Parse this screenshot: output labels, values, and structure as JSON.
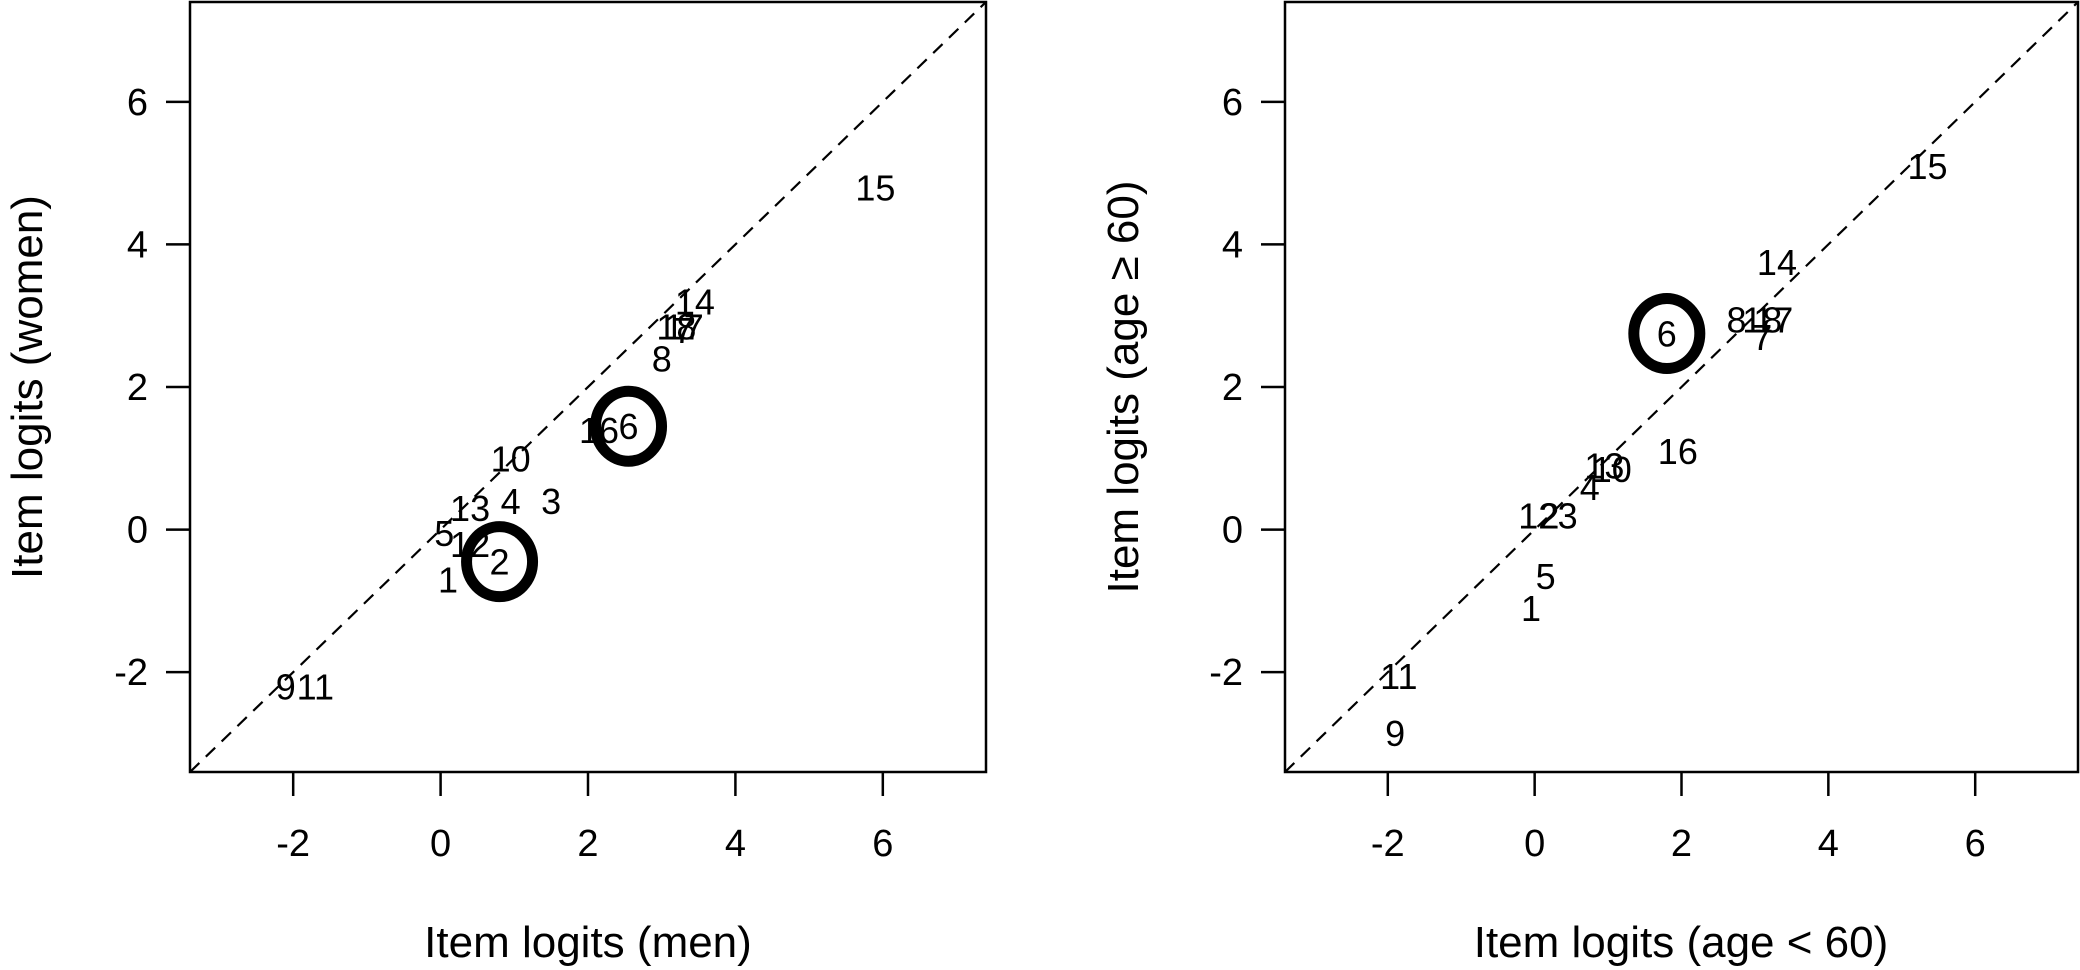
{
  "chart_data": [
    {
      "type": "scatter",
      "title": "",
      "xlabel": "Item logits (men)",
      "ylabel": "Item logits (women)",
      "xlim": [
        -3.4,
        7.4
      ],
      "ylim": [
        -3.4,
        7.4
      ],
      "xticks": [
        "-2",
        "0",
        "2",
        "4",
        "6"
      ],
      "yticks": [
        "-2",
        "0",
        "2",
        "4",
        "6"
      ],
      "reference_line": "y = x (dashed)",
      "grid": false,
      "points": [
        {
          "label": "1",
          "x": 0.1,
          "y": -0.7
        },
        {
          "label": "2",
          "x": 0.8,
          "y": -0.45
        },
        {
          "label": "3",
          "x": 1.5,
          "y": 0.4
        },
        {
          "label": "4",
          "x": 0.95,
          "y": 0.4
        },
        {
          "label": "5",
          "x": 0.05,
          "y": -0.05
        },
        {
          "label": "6",
          "x": 2.55,
          "y": 1.45
        },
        {
          "label": "7",
          "x": 3.3,
          "y": 2.8
        },
        {
          "label": "8",
          "x": 3.0,
          "y": 2.4
        },
        {
          "label": "9",
          "x": -2.1,
          "y": -2.2
        },
        {
          "label": "10",
          "x": 0.95,
          "y": 1.0
        },
        {
          "label": "11",
          "x": -1.7,
          "y": -2.2
        },
        {
          "label": "12",
          "x": 0.4,
          "y": -0.2
        },
        {
          "label": "13",
          "x": 0.4,
          "y": 0.3
        },
        {
          "label": "14",
          "x": 3.45,
          "y": 3.2
        },
        {
          "label": "15",
          "x": 5.9,
          "y": 4.8
        },
        {
          "label": "16",
          "x": 2.15,
          "y": 1.4
        },
        {
          "label": "17",
          "x": 3.3,
          "y": 2.85
        },
        {
          "label": "18",
          "x": 3.2,
          "y": 2.85
        }
      ],
      "highlighted": [
        "2",
        "6"
      ]
    },
    {
      "type": "scatter",
      "title": "",
      "xlabel": "Item logits (age < 60)",
      "ylabel": "Item logits (age ≥ 60)",
      "xlim": [
        -3.4,
        7.4
      ],
      "ylim": [
        -3.4,
        7.4
      ],
      "xticks": [
        "-2",
        "0",
        "2",
        "4",
        "6"
      ],
      "yticks": [
        "-2",
        "0",
        "2",
        "4",
        "6"
      ],
      "reference_line": "y = x (dashed)",
      "grid": false,
      "points": [
        {
          "label": "1",
          "x": -0.05,
          "y": -1.1
        },
        {
          "label": "2",
          "x": 0.2,
          "y": 0.2
        },
        {
          "label": "3",
          "x": 0.45,
          "y": 0.2
        },
        {
          "label": "4",
          "x": 0.75,
          "y": 0.6
        },
        {
          "label": "5",
          "x": 0.15,
          "y": -0.65
        },
        {
          "label": "6",
          "x": 1.8,
          "y": 2.75
        },
        {
          "label": "7",
          "x": 3.1,
          "y": 2.7
        },
        {
          "label": "8",
          "x": 2.75,
          "y": 2.95
        },
        {
          "label": "9",
          "x": -1.9,
          "y": -2.85
        },
        {
          "label": "10",
          "x": 1.05,
          "y": 0.85
        },
        {
          "label": "11",
          "x": -1.85,
          "y": -2.05
        },
        {
          "label": "12",
          "x": 0.05,
          "y": 0.2
        },
        {
          "label": "13",
          "x": 0.95,
          "y": 0.9
        },
        {
          "label": "14",
          "x": 3.3,
          "y": 3.75
        },
        {
          "label": "15",
          "x": 5.35,
          "y": 5.1
        },
        {
          "label": "16",
          "x": 1.95,
          "y": 1.1
        },
        {
          "label": "17",
          "x": 3.25,
          "y": 2.95
        },
        {
          "label": "18",
          "x": 3.1,
          "y": 2.95
        }
      ],
      "highlighted": [
        "6"
      ]
    }
  ]
}
